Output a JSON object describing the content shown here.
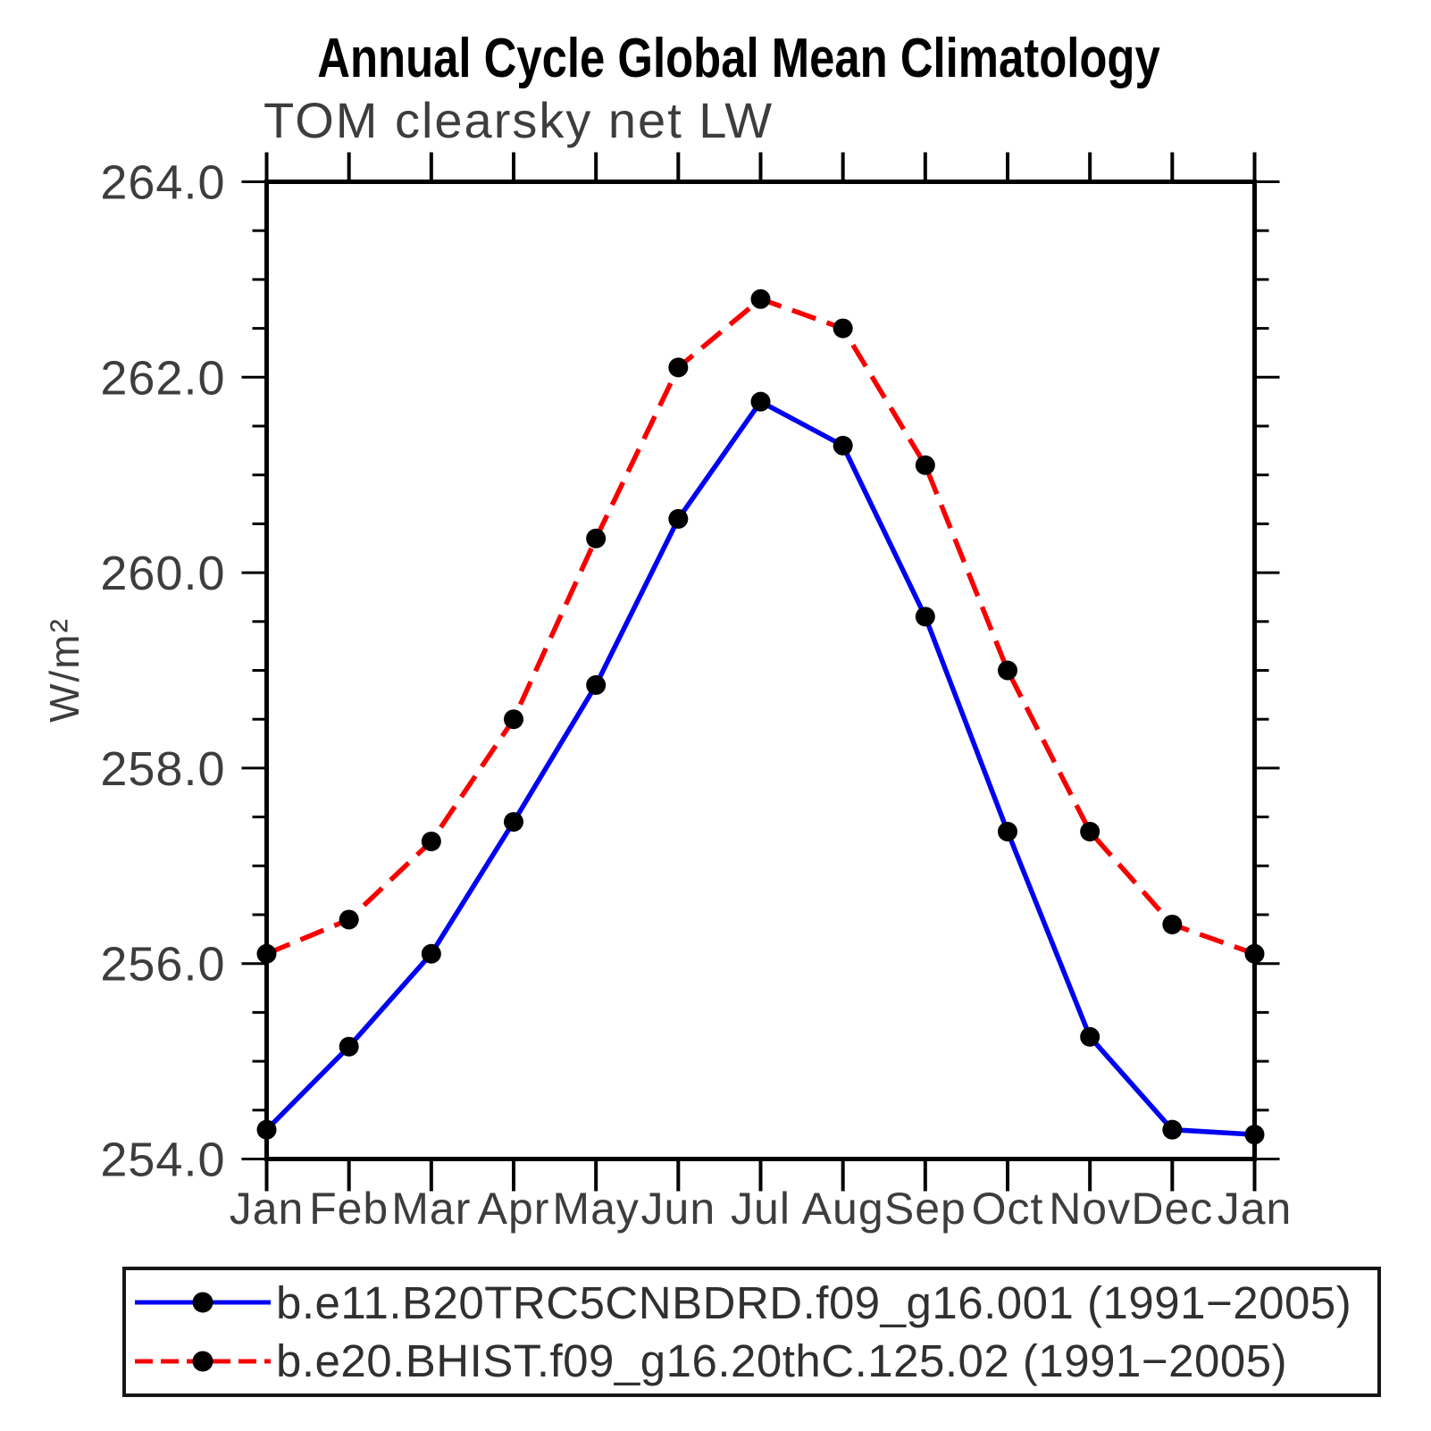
{
  "title": "Annual Cycle Global Mean Climatology",
  "subtitle": "TOM clearsky net LW",
  "chart_data": {
    "type": "line",
    "title": "Annual Cycle Global Mean Climatology",
    "subtitle": "TOM clearsky net LW",
    "xlabel": "",
    "ylabel": "W/m²",
    "categories": [
      "Jan",
      "Feb",
      "Mar",
      "Apr",
      "May",
      "Jun",
      "Jul",
      "Aug",
      "Sep",
      "Oct",
      "Nov",
      "Dec",
      "Jan"
    ],
    "ylim": [
      254.0,
      264.0
    ],
    "ytick_labels": [
      "264.0",
      "262.0",
      "260.0",
      "258.0",
      "256.0",
      "254.0"
    ],
    "ytick_major_interval": 2.0,
    "ytick_minor_interval": 0.5,
    "grid": false,
    "legend_position": "bottom-left-box",
    "axis_color": "#000000",
    "marker_color": "#000000",
    "series": [
      {
        "name": "b.e11.B20TRC5CNBDRD.f09_g16.001 (1991−2005)",
        "color": "#0000f2",
        "line_style": "solid",
        "marker": "filled-circle",
        "values": [
          254.3,
          255.15,
          256.1,
          257.45,
          258.85,
          260.55,
          261.75,
          261.3,
          259.55,
          257.35,
          255.25,
          254.3,
          254.25
        ]
      },
      {
        "name": "b.e20.BHIST.f09_g16.20thC.125.02 (1991−2005)",
        "color": "#f80000",
        "line_style": "dashed",
        "marker": "filled-circle",
        "values": [
          256.1,
          256.45,
          257.25,
          258.5,
          260.35,
          262.1,
          262.8,
          262.5,
          261.1,
          259.0,
          257.35,
          256.4,
          256.1
        ]
      }
    ]
  }
}
